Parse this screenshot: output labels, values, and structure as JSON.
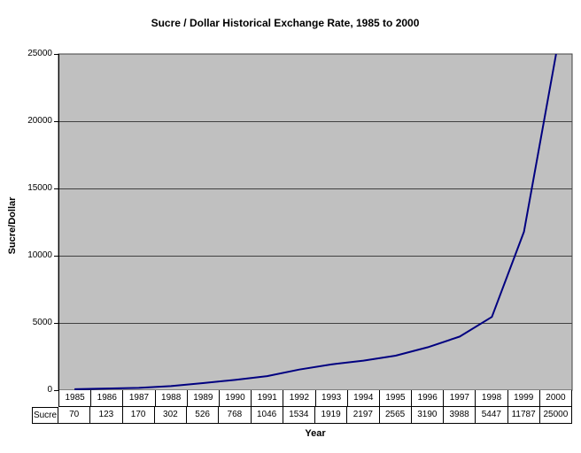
{
  "chart_data": {
    "type": "line",
    "title": "Sucre / Dollar Historical Exchange Rate, 1985 to 2000",
    "categories": [
      "1985",
      "1986",
      "1987",
      "1988",
      "1989",
      "1990",
      "1991",
      "1992",
      "1993",
      "1994",
      "1995",
      "1996",
      "1997",
      "1998",
      "1999",
      "2000"
    ],
    "series": [
      {
        "name": "Sucre",
        "values": [
          70,
          123,
          170,
          302,
          526,
          768,
          1046,
          1534,
          1919,
          2197,
          2565,
          3190,
          3988,
          5447,
          11787,
          25000
        ]
      }
    ],
    "xlabel": "Year",
    "ylabel": "Sucre/Dollar",
    "ylim": [
      0,
      25000
    ],
    "yticks": [
      0,
      5000,
      10000,
      15000,
      20000,
      25000
    ],
    "grid": "horizontal",
    "legend_position": "none",
    "data_table_shown": true
  },
  "colors": {
    "line": "#000080",
    "plot_background": "#c0c0c0",
    "gridline": "#404040",
    "plot_border": "#404040",
    "axis": "#000000",
    "table_border": "#000000",
    "page_background": "#ffffff",
    "text": "#000000"
  }
}
